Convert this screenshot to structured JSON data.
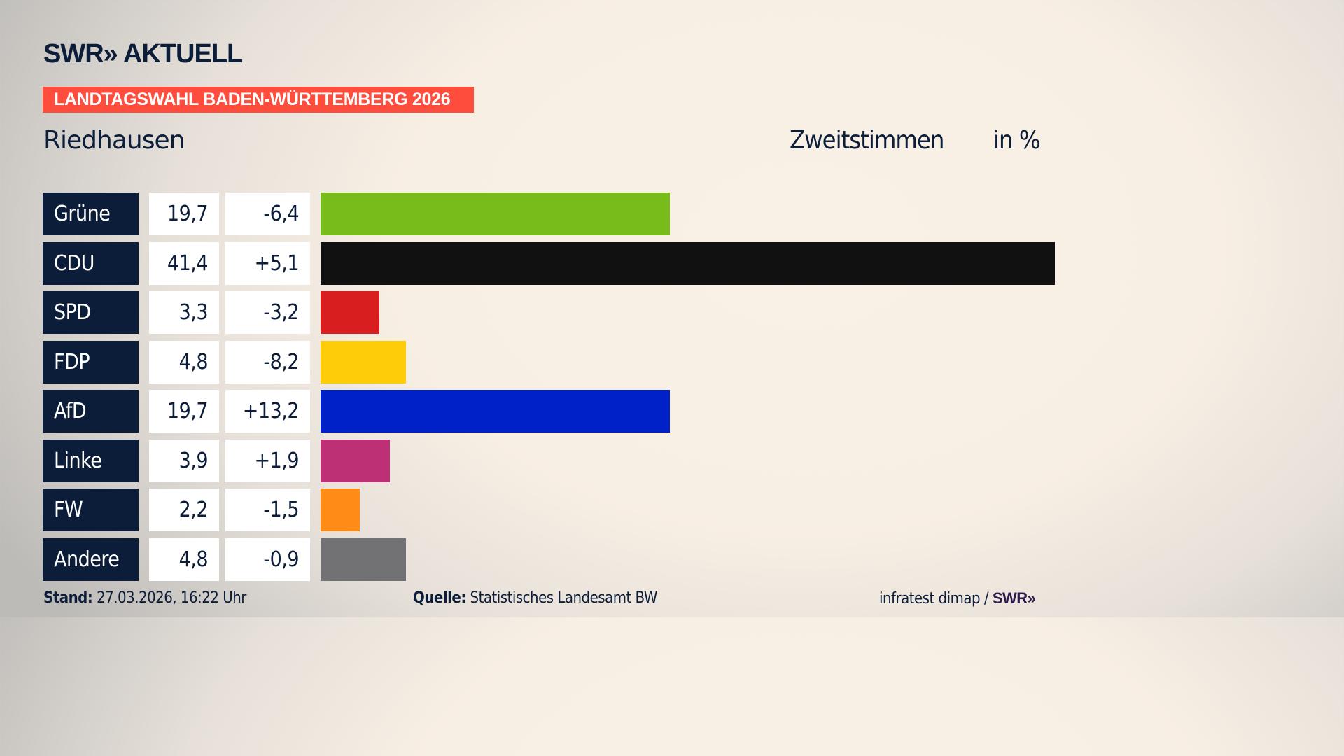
{
  "header": {
    "logo": "SWR» AKTUELL",
    "banner": "LANDTAGSWAHL BADEN-WÜRTTEMBERG 2026",
    "location": "Riedhausen",
    "metric": "Zweitstimmen",
    "unit": "in %"
  },
  "chart_data": {
    "type": "bar",
    "orientation": "horizontal",
    "categories": [
      "Grüne",
      "CDU",
      "SPD",
      "FDP",
      "AfD",
      "Linke",
      "FW",
      "Andere"
    ],
    "values": [
      19.7,
      41.4,
      3.3,
      4.8,
      19.7,
      3.9,
      2.2,
      4.8
    ],
    "value_labels": [
      "19,7",
      "41,4",
      "3,3",
      "4,8",
      "19,7",
      "3,9",
      "2,2",
      "4,8"
    ],
    "change_labels": [
      "-6,4",
      "+5,1",
      "-3,2",
      "-8,2",
      "+13,2",
      "+1,9",
      "-1,5",
      "-0,9"
    ],
    "changes": [
      -6.4,
      5.1,
      -3.2,
      -8.2,
      13.2,
      1.9,
      -1.5,
      -0.9
    ],
    "colors": [
      "#78bc1b",
      "#111111",
      "#d81e1e",
      "#ffcc0a",
      "#0021c8",
      "#bd3075",
      "#ff8c16",
      "#727274"
    ],
    "xlim": [
      0,
      41.4
    ],
    "grid": false
  },
  "footer": {
    "stand_label": "Stand:",
    "stand_value": "27.03.2026, 16:22 Uhr",
    "source_label": "Quelle:",
    "source_value": "Statistisches Landesamt BW",
    "credit": "infratest dimap /",
    "credit_logo": "SWR»"
  }
}
